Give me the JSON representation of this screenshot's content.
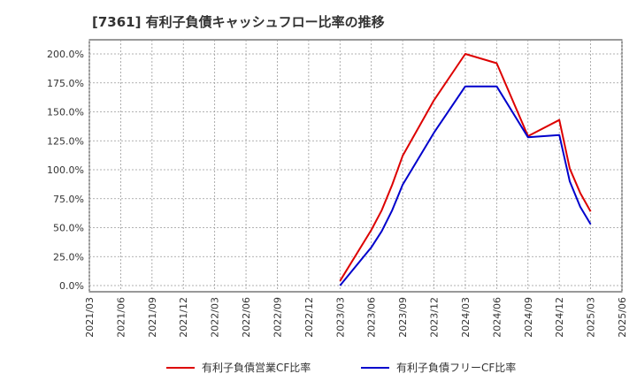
{
  "chart_data": {
    "type": "line",
    "title": "[7361]  有利子負債キャッシュフロー比率の推移",
    "xlabel": "",
    "ylabel": "",
    "ylim": [
      0,
      200
    ],
    "yticks": [
      "0.0%",
      "25.0%",
      "50.0%",
      "75.0%",
      "100.0%",
      "125.0%",
      "150.0%",
      "175.0%",
      "200.0%"
    ],
    "yticks_values": [
      0,
      25,
      50,
      75,
      100,
      125,
      150,
      175,
      200
    ],
    "xticks": [
      "2021/03",
      "2021/06",
      "2021/09",
      "2021/12",
      "2022/03",
      "2022/06",
      "2022/09",
      "2022/12",
      "2023/03",
      "2023/06",
      "2023/09",
      "2023/12",
      "2024/03",
      "2024/06",
      "2024/09",
      "2024/12",
      "2025/03",
      "2025/06"
    ],
    "grid": true,
    "legend_position": "bottom",
    "series": [
      {
        "name": "有利子負債営業CF比率",
        "color": "#dd0000",
        "x": [
          "2023/03",
          "2023/06",
          "2023/07",
          "2023/08",
          "2023/09",
          "2023/12",
          "2024/03",
          "2024/06",
          "2024/09",
          "2024/12",
          "2025/01",
          "2025/02",
          "2025/03"
        ],
        "values": [
          4,
          48,
          65,
          87,
          112,
          160,
          200,
          192,
          129,
          143,
          101,
          80,
          64
        ]
      },
      {
        "name": "有利子負債フリーCF比率",
        "color": "#0000cc",
        "x": [
          "2023/03",
          "2023/06",
          "2023/07",
          "2023/08",
          "2023/09",
          "2023/12",
          "2024/03",
          "2024/06",
          "2024/09",
          "2024/12",
          "2025/01",
          "2025/02",
          "2025/03"
        ],
        "values": [
          0,
          33,
          47,
          65,
          87,
          132,
          172,
          172,
          128,
          130,
          90,
          68,
          53
        ]
      }
    ]
  }
}
